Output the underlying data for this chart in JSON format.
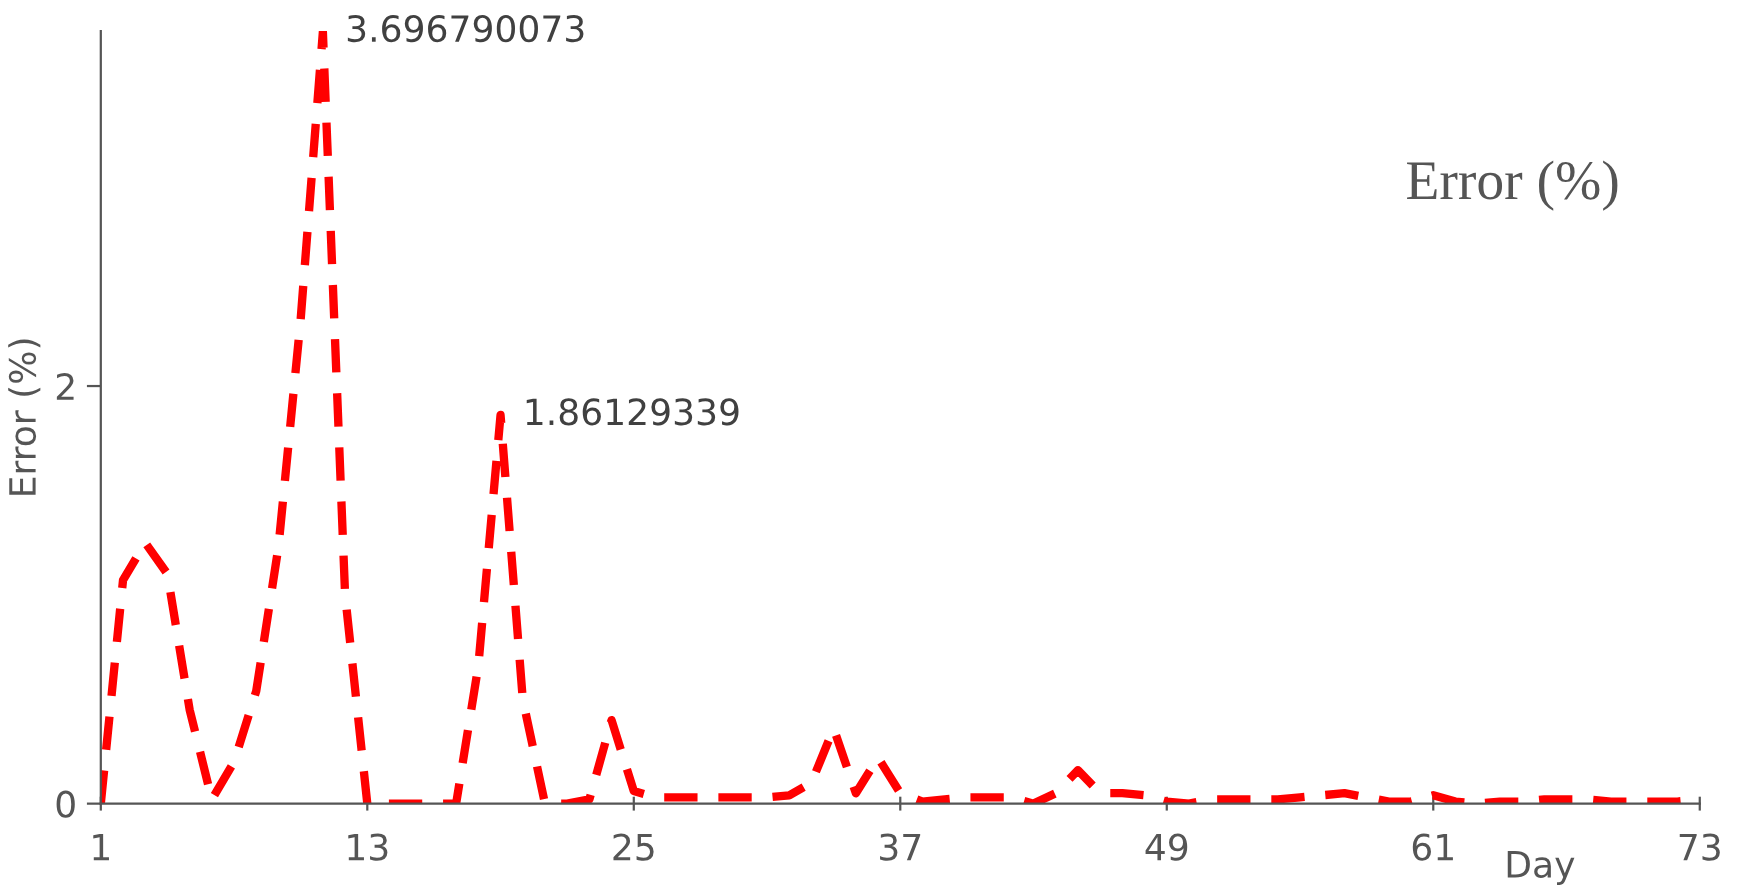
{
  "chart_data": {
    "type": "line",
    "title": "Error (%)",
    "xlabel": "Day",
    "ylabel": "Error (%)",
    "x": [
      1,
      2,
      3,
      4,
      5,
      6,
      7,
      8,
      9,
      10,
      11,
      12,
      13,
      14,
      15,
      16,
      17,
      18,
      19,
      20,
      21,
      22,
      23,
      24,
      25,
      26,
      27,
      28,
      29,
      30,
      31,
      32,
      33,
      34,
      35,
      36,
      37,
      38,
      39,
      40,
      41,
      42,
      43,
      44,
      45,
      46,
      47,
      48,
      49,
      50,
      51,
      52,
      53,
      54,
      55,
      56,
      57,
      58,
      59,
      60,
      61,
      62,
      63,
      64,
      65,
      66,
      67,
      68,
      69,
      70,
      71,
      72,
      73
    ],
    "series": [
      {
        "color": "#ff0000",
        "values": [
          0,
          1.07,
          1.25,
          1.1,
          0.45,
          0.02,
          0.2,
          0.54,
          1.23,
          2.32,
          3.696790073,
          1.0,
          0,
          0,
          0,
          0,
          0,
          0.66,
          1.86129339,
          0.5,
          0,
          0,
          0.02,
          0.4,
          0.06,
          0.03,
          0.03,
          0.03,
          0.03,
          0.03,
          0.03,
          0.04,
          0.1,
          0.36,
          0.05,
          0.22,
          0.05,
          0.01,
          0.02,
          0.03,
          0.03,
          0.03,
          0,
          0.05,
          0.16,
          0.05,
          0.05,
          0.04,
          0.01,
          0,
          0.02,
          0.02,
          0.02,
          0.02,
          0.03,
          0.04,
          0.05,
          0.03,
          0.01,
          0.01,
          0.04,
          0.01,
          0,
          0.01,
          0.01,
          0.02,
          0.02,
          0.02,
          0.01,
          0.01,
          0.01,
          0.01,
          0.02
        ]
      }
    ],
    "annotations": [
      {
        "text": "3.696790073",
        "x": 11,
        "y": 3.696790073
      },
      {
        "text": "1.86129339",
        "x": 19,
        "y": 1.86129339
      }
    ],
    "xlim": [
      1,
      73
    ],
    "xticks": [
      1,
      13,
      25,
      37,
      49,
      61,
      73
    ],
    "ylim": [
      0,
      3.7
    ],
    "yticks": [
      0,
      2
    ],
    "line_style": "dashed",
    "marker": "none",
    "grid": false,
    "legend": false
  }
}
